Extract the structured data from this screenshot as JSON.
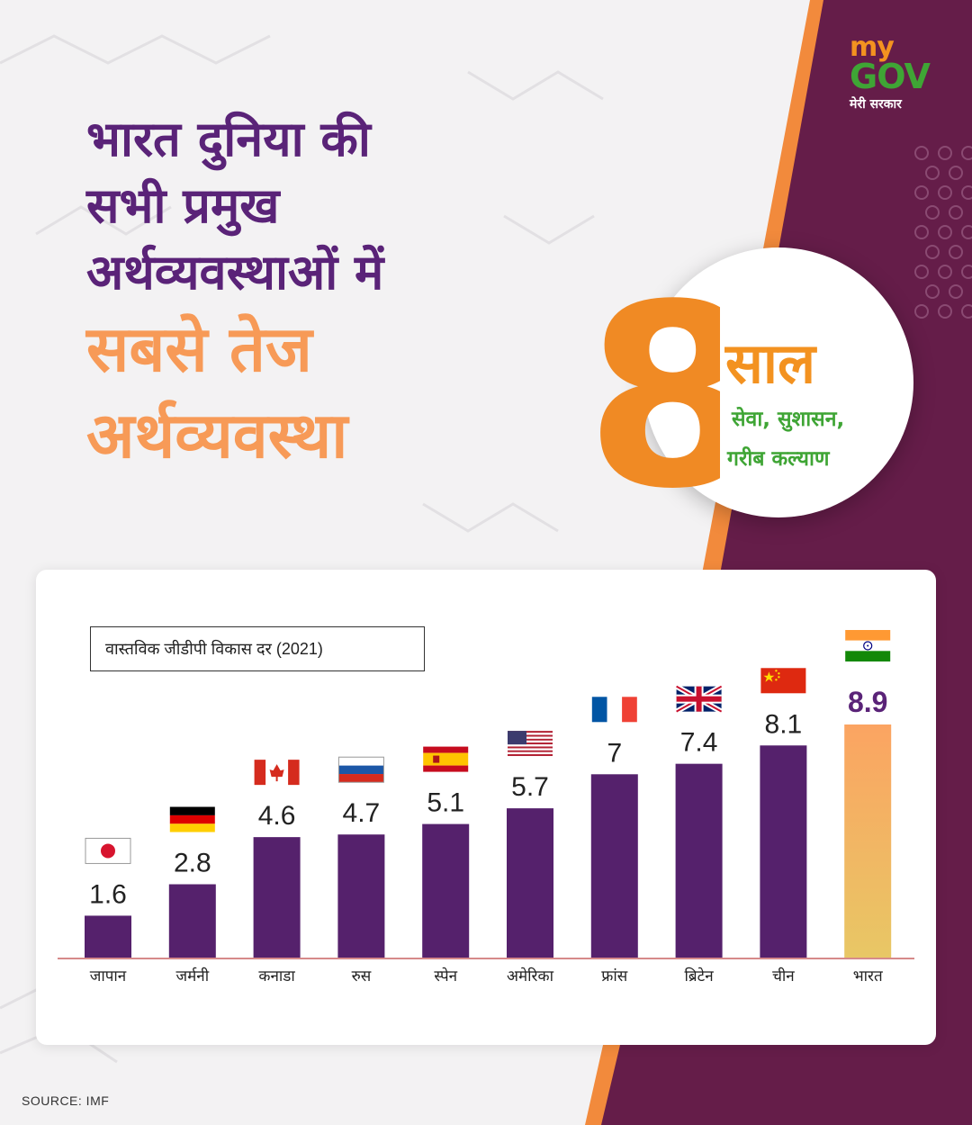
{
  "logo": {
    "my": "my",
    "gov": "GOV",
    "subtitle": "मेरी सरकार"
  },
  "headline": {
    "line1": "भारत दुनिया की",
    "line2": "सभी प्रमुख",
    "line3": "अर्थव्यवस्थाओं में",
    "highlight1": "सबसे तेज",
    "highlight2": "अर्थव्यवस्था"
  },
  "badge": {
    "number": "8",
    "word": "साल",
    "tagline1": "सेवा, सुशासन,",
    "tagline2": "गरीब कल्याण"
  },
  "colors": {
    "purple": "#5a2378",
    "dark_purple": "#651d49",
    "orange": "#f79a57",
    "saffron": "#f39220",
    "green": "#3fa535",
    "bar": "#55216c",
    "baseline": "#d68a8a"
  },
  "chart_data": {
    "type": "bar",
    "title": "वास्तविक जीडीपी विकास दर (2021)",
    "categories": [
      "जापान",
      "जर्मनी",
      "कनाडा",
      "रुस",
      "स्पेन",
      "अमेरिका",
      "फ्रांस",
      "ब्रिटेन",
      "चीन",
      "भारत"
    ],
    "values": [
      1.6,
      2.8,
      4.6,
      4.7,
      5.1,
      5.7,
      7,
      7.4,
      8.1,
      8.9
    ],
    "value_labels": [
      "1.6",
      "2.8",
      "4.6",
      "4.7",
      "5.1",
      "5.7",
      "7",
      "7.4",
      "8.1",
      "8.9"
    ],
    "flags": [
      "japan-flag-icon",
      "germany-flag-icon",
      "canada-flag-icon",
      "russia-flag-icon",
      "spain-flag-icon",
      "usa-flag-icon",
      "france-flag-icon",
      "uk-flag-icon",
      "china-flag-icon",
      "india-flag-icon"
    ],
    "highlight_index": 9,
    "xlabel": "",
    "ylabel": "",
    "ylim": [
      0,
      8.9
    ],
    "grid": false
  },
  "source": "SOURCE: IMF"
}
